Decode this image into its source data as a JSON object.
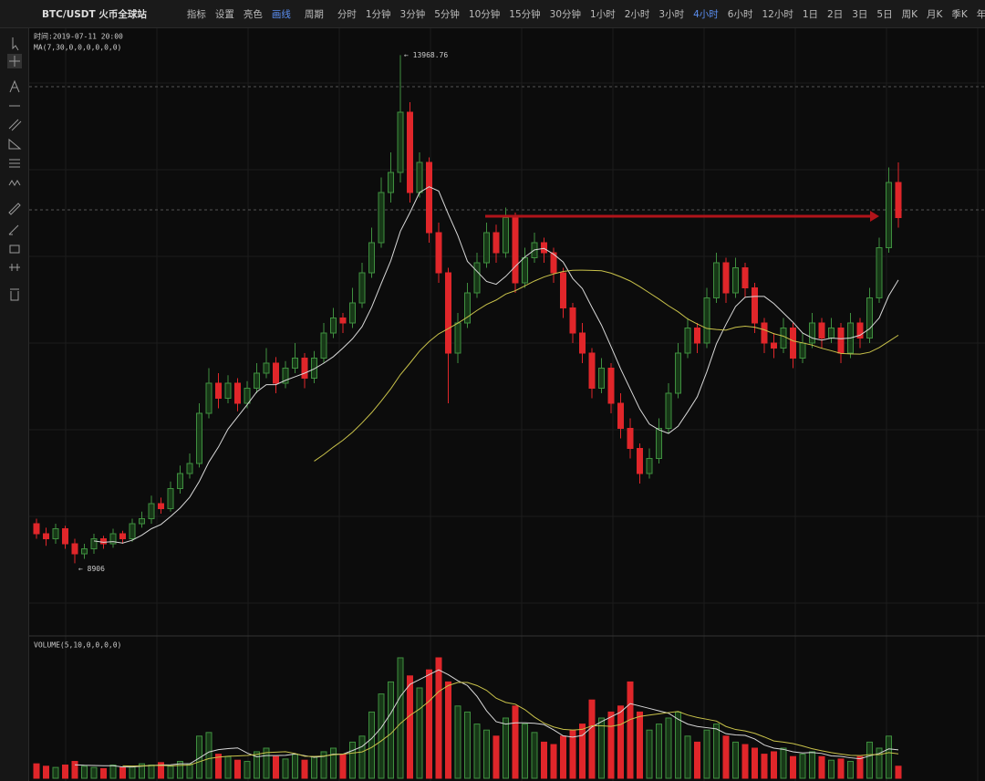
{
  "header": {
    "symbol": "BTC/USDT 火币全球站",
    "tools": [
      "指标",
      "设置",
      "亮色",
      "画线"
    ],
    "period_label": "周期",
    "periods": [
      "分时",
      "1分钟",
      "3分钟",
      "5分钟",
      "10分钟",
      "15分钟",
      "30分钟",
      "1小时",
      "2小时",
      "3小时",
      "4小时",
      "6小时",
      "12小时",
      "1日",
      "2日",
      "3日",
      "5日",
      "周K",
      "月K",
      "季K",
      "年K"
    ],
    "active_period": "4小时"
  },
  "chart_data": {
    "type": "candlestick",
    "time_label": "时间:2019-07-11 20:00",
    "ma_label": "MA(7,30,0,0,0,0,0,0)",
    "ma_periods": [
      7,
      30
    ],
    "ma_colors": [
      "#d8d8d8",
      "#c9c24a"
    ],
    "up_color": "#3f8f3f",
    "down_color": "#e0262a",
    "ylim": [
      8200,
      14200
    ],
    "high_annotation": "← 13968.76",
    "low_annotation": "← 8906",
    "candles": [
      [
        9300,
        9350,
        9150,
        9200
      ],
      [
        9200,
        9260,
        9080,
        9150
      ],
      [
        9150,
        9300,
        9100,
        9250
      ],
      [
        9250,
        9280,
        9050,
        9100
      ],
      [
        9100,
        9150,
        8906,
        9000
      ],
      [
        9000,
        9100,
        8950,
        9050
      ],
      [
        9050,
        9200,
        9000,
        9150
      ],
      [
        9150,
        9180,
        9050,
        9100
      ],
      [
        9100,
        9250,
        9060,
        9200
      ],
      [
        9200,
        9230,
        9100,
        9150
      ],
      [
        9150,
        9350,
        9120,
        9300
      ],
      [
        9300,
        9420,
        9260,
        9350
      ],
      [
        9350,
        9580,
        9300,
        9500
      ],
      [
        9500,
        9560,
        9400,
        9450
      ],
      [
        9450,
        9720,
        9420,
        9650
      ],
      [
        9650,
        9880,
        9600,
        9800
      ],
      [
        9800,
        10000,
        9750,
        9900
      ],
      [
        9900,
        10500,
        9860,
        10400
      ],
      [
        10400,
        10850,
        10350,
        10700
      ],
      [
        10700,
        10800,
        10450,
        10550
      ],
      [
        10550,
        10780,
        10500,
        10700
      ],
      [
        10700,
        10750,
        10420,
        10500
      ],
      [
        10500,
        10720,
        10450,
        10650
      ],
      [
        10650,
        10900,
        10600,
        10800
      ],
      [
        10800,
        11050,
        10750,
        10900
      ],
      [
        10900,
        10960,
        10600,
        10700
      ],
      [
        10700,
        10920,
        10650,
        10850
      ],
      [
        10850,
        11100,
        10800,
        10950
      ],
      [
        10950,
        11000,
        10650,
        10750
      ],
      [
        10750,
        11020,
        10700,
        10950
      ],
      [
        10950,
        11300,
        10900,
        11200
      ],
      [
        11200,
        11450,
        11150,
        11350
      ],
      [
        11350,
        11400,
        11200,
        11300
      ],
      [
        11300,
        11650,
        11250,
        11500
      ],
      [
        11500,
        11900,
        11450,
        11800
      ],
      [
        11800,
        12250,
        11750,
        12100
      ],
      [
        12100,
        12750,
        12050,
        12600
      ],
      [
        12600,
        13000,
        12500,
        12800
      ],
      [
        12800,
        13968.76,
        12700,
        13400
      ],
      [
        13400,
        13500,
        12500,
        12600
      ],
      [
        12600,
        13000,
        12550,
        12900
      ],
      [
        12900,
        12950,
        12100,
        12200
      ],
      [
        12200,
        12300,
        11700,
        11800
      ],
      [
        11800,
        11850,
        10500,
        11000
      ],
      [
        11000,
        11400,
        10900,
        11300
      ],
      [
        11300,
        11700,
        11250,
        11600
      ],
      [
        11600,
        12000,
        11550,
        11900
      ],
      [
        11900,
        12300,
        11850,
        12200
      ],
      [
        12200,
        12280,
        11900,
        12000
      ],
      [
        12000,
        12450,
        11950,
        12350
      ],
      [
        12350,
        12400,
        11600,
        11700
      ],
      [
        11700,
        12050,
        11650,
        11950
      ],
      [
        11950,
        12200,
        11900,
        12100
      ],
      [
        12100,
        12150,
        11900,
        12000
      ],
      [
        12000,
        12050,
        11700,
        11800
      ],
      [
        11800,
        11850,
        11350,
        11450
      ],
      [
        11450,
        11500,
        11100,
        11200
      ],
      [
        11200,
        11300,
        10900,
        11000
      ],
      [
        11000,
        11050,
        10550,
        10650
      ],
      [
        10650,
        10950,
        10600,
        10850
      ],
      [
        10850,
        10900,
        10400,
        10500
      ],
      [
        10500,
        10600,
        10150,
        10250
      ],
      [
        10250,
        10350,
        9950,
        10050
      ],
      [
        10050,
        10100,
        9700,
        9800
      ],
      [
        9800,
        10050,
        9750,
        9950
      ],
      [
        9950,
        10350,
        9900,
        10250
      ],
      [
        10250,
        10700,
        10200,
        10600
      ],
      [
        10600,
        11100,
        10550,
        11000
      ],
      [
        11000,
        11350,
        10950,
        11250
      ],
      [
        11250,
        11300,
        11000,
        11100
      ],
      [
        11100,
        11650,
        11050,
        11550
      ],
      [
        11550,
        12000,
        11500,
        11900
      ],
      [
        11900,
        11950,
        11500,
        11600
      ],
      [
        11600,
        11950,
        11550,
        11850
      ],
      [
        11850,
        11900,
        11550,
        11650
      ],
      [
        11650,
        11700,
        11200,
        11300
      ],
      [
        11300,
        11350,
        11000,
        11100
      ],
      [
        11100,
        11200,
        10950,
        11050
      ],
      [
        11050,
        11350,
        11000,
        11250
      ],
      [
        11250,
        11300,
        10850,
        10950
      ],
      [
        10950,
        11200,
        10900,
        11100
      ],
      [
        11100,
        11400,
        11050,
        11300
      ],
      [
        11300,
        11350,
        11050,
        11150
      ],
      [
        11150,
        11350,
        11100,
        11250
      ],
      [
        11250,
        11300,
        10900,
        11000
      ],
      [
        11000,
        11400,
        10950,
        11300
      ],
      [
        11300,
        11350,
        11050,
        11150
      ],
      [
        11150,
        11650,
        11100,
        11550
      ],
      [
        11550,
        12150,
        11500,
        12050
      ],
      [
        12050,
        12850,
        12000,
        12700
      ],
      [
        12700,
        12900,
        12250,
        12350
      ]
    ],
    "volume_label": "VOLUME(5,10,0,0,0,0)",
    "volume_ma_periods": [
      5,
      10
    ],
    "vlim": [
      0,
      100
    ],
    "volume": [
      12,
      10,
      9,
      11,
      14,
      10,
      9,
      8,
      11,
      9,
      10,
      12,
      11,
      13,
      10,
      14,
      12,
      35,
      38,
      20,
      18,
      15,
      14,
      22,
      25,
      18,
      16,
      20,
      15,
      18,
      22,
      25,
      20,
      30,
      35,
      55,
      70,
      80,
      100,
      85,
      75,
      90,
      100,
      80,
      60,
      55,
      45,
      40,
      35,
      50,
      60,
      45,
      38,
      30,
      28,
      35,
      40,
      45,
      65,
      50,
      55,
      60,
      80,
      55,
      40,
      45,
      50,
      55,
      35,
      30,
      40,
      45,
      35,
      30,
      28,
      25,
      20,
      22,
      25,
      18,
      20,
      22,
      18,
      15,
      16,
      14,
      18,
      30,
      25,
      35,
      10
    ]
  }
}
